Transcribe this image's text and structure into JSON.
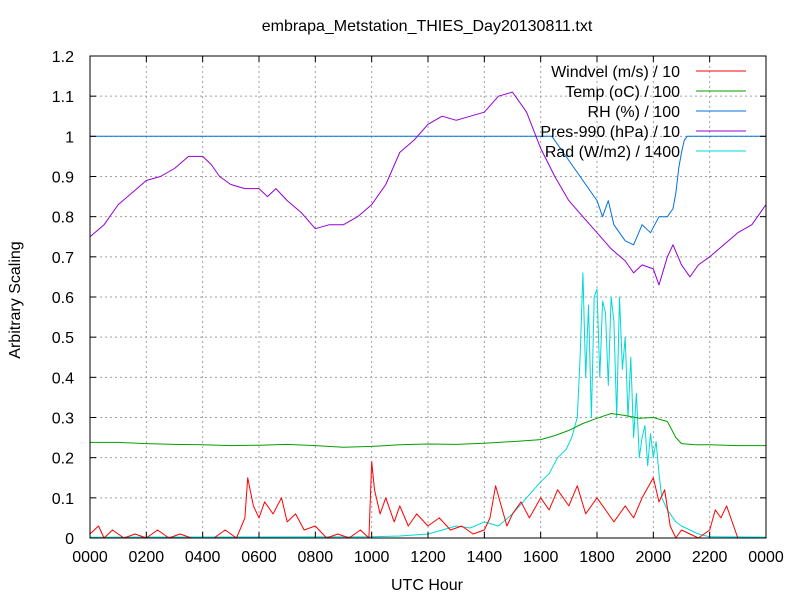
{
  "chart_data": {
    "type": "line",
    "title": "embrapa_Metstation_THIES_Day20130811.txt",
    "xlabel": "UTC Hour",
    "ylabel": "Arbitrary Scaling",
    "xlim": [
      0,
      24
    ],
    "ylim": [
      0,
      1.2
    ],
    "grid": true,
    "legend_position": "top-right",
    "x_ticks": [
      {
        "v": 0,
        "label": "0000"
      },
      {
        "v": 2,
        "label": "0200"
      },
      {
        "v": 4,
        "label": "0400"
      },
      {
        "v": 6,
        "label": "0600"
      },
      {
        "v": 8,
        "label": "0800"
      },
      {
        "v": 10,
        "label": "1000"
      },
      {
        "v": 12,
        "label": "1200"
      },
      {
        "v": 14,
        "label": "1400"
      },
      {
        "v": 16,
        "label": "1600"
      },
      {
        "v": 18,
        "label": "1800"
      },
      {
        "v": 20,
        "label": "2000"
      },
      {
        "v": 22,
        "label": "2200"
      },
      {
        "v": 24,
        "label": "0000"
      }
    ],
    "y_ticks": [
      {
        "v": 0,
        "label": "0"
      },
      {
        "v": 0.1,
        "label": "0.1"
      },
      {
        "v": 0.2,
        "label": "0.2"
      },
      {
        "v": 0.3,
        "label": "0.3"
      },
      {
        "v": 0.4,
        "label": "0.4"
      },
      {
        "v": 0.5,
        "label": "0.5"
      },
      {
        "v": 0.6,
        "label": "0.6"
      },
      {
        "v": 0.7,
        "label": "0.7"
      },
      {
        "v": 0.8,
        "label": "0.8"
      },
      {
        "v": 0.9,
        "label": "0.9"
      },
      {
        "v": 1.0,
        "label": "1"
      },
      {
        "v": 1.1,
        "label": "1.1"
      },
      {
        "v": 1.2,
        "label": "1.2"
      }
    ],
    "series": [
      {
        "name": "Windvel (m/s) / 10",
        "color": "#ff0000",
        "x": [
          0,
          0.3,
          0.5,
          0.8,
          1.2,
          1.6,
          2.0,
          2.4,
          2.8,
          3.2,
          3.6,
          4.0,
          4.4,
          4.8,
          5.2,
          5.5,
          5.6,
          5.8,
          6.0,
          6.2,
          6.5,
          6.8,
          7.0,
          7.3,
          7.6,
          8.0,
          8.4,
          8.8,
          9.2,
          9.6,
          9.9,
          10.0,
          10.1,
          10.3,
          10.5,
          10.8,
          11.0,
          11.3,
          11.6,
          12.0,
          12.4,
          12.8,
          13.2,
          13.6,
          14.0,
          14.2,
          14.4,
          14.6,
          14.8,
          15.0,
          15.3,
          15.6,
          16.0,
          16.3,
          16.6,
          17.0,
          17.3,
          17.6,
          18.0,
          18.3,
          18.6,
          19.0,
          19.3,
          19.6,
          20.0,
          20.2,
          20.4,
          20.6,
          20.8,
          21.0,
          21.3,
          21.6,
          22.0,
          22.2,
          22.4,
          22.6,
          22.8,
          23.0,
          23.5,
          24.0
        ],
        "y": [
          0.01,
          0.03,
          0.0,
          0.02,
          0.0,
          0.01,
          0.0,
          0.02,
          0.0,
          0.01,
          0.0,
          0.0,
          0.0,
          0.02,
          0.0,
          0.05,
          0.15,
          0.08,
          0.05,
          0.09,
          0.06,
          0.1,
          0.04,
          0.06,
          0.02,
          0.03,
          0.0,
          0.01,
          0.0,
          0.02,
          0.0,
          0.19,
          0.12,
          0.06,
          0.1,
          0.04,
          0.08,
          0.03,
          0.06,
          0.03,
          0.05,
          0.02,
          0.03,
          0.01,
          0.02,
          0.05,
          0.13,
          0.08,
          0.03,
          0.06,
          0.09,
          0.05,
          0.1,
          0.07,
          0.12,
          0.08,
          0.13,
          0.06,
          0.1,
          0.07,
          0.04,
          0.08,
          0.05,
          0.1,
          0.15,
          0.09,
          0.12,
          0.03,
          0.0,
          0.02,
          0.01,
          0.0,
          0.02,
          0.07,
          0.05,
          0.08,
          0.04,
          0.0,
          0.0,
          0.0
        ]
      },
      {
        "name": "Temp (oC) / 100",
        "color": "#00a000",
        "x": [
          0,
          1,
          2,
          3,
          4,
          5,
          6,
          7,
          8,
          9,
          10,
          11,
          12,
          13,
          14,
          15,
          16,
          16.5,
          17,
          17.5,
          18,
          18.5,
          19,
          19.5,
          20,
          20.5,
          20.8,
          21,
          21.5,
          22,
          23,
          24
        ],
        "y": [
          0.238,
          0.238,
          0.235,
          0.233,
          0.232,
          0.23,
          0.231,
          0.233,
          0.23,
          0.226,
          0.228,
          0.232,
          0.234,
          0.233,
          0.236,
          0.24,
          0.245,
          0.255,
          0.268,
          0.285,
          0.298,
          0.31,
          0.305,
          0.298,
          0.3,
          0.29,
          0.25,
          0.235,
          0.232,
          0.232,
          0.23,
          0.23
        ]
      },
      {
        "name": "RH (%) / 100",
        "color": "#0070e0",
        "x": [
          0,
          16.4,
          16.8,
          17.2,
          17.6,
          18.0,
          18.2,
          18.4,
          18.6,
          18.8,
          19.0,
          19.3,
          19.6,
          19.9,
          20.2,
          20.5,
          20.7,
          20.8,
          20.9,
          21.0,
          21.1,
          21.2,
          24
        ],
        "y": [
          1.0,
          1.0,
          0.96,
          0.92,
          0.88,
          0.84,
          0.8,
          0.84,
          0.78,
          0.76,
          0.74,
          0.73,
          0.78,
          0.76,
          0.8,
          0.8,
          0.82,
          0.86,
          0.92,
          0.96,
          0.99,
          1.0,
          1.0
        ]
      },
      {
        "name": "Pres-990 (hPa) / 10",
        "color": "#9400d3",
        "x": [
          0,
          0.5,
          1,
          1.5,
          2,
          2.5,
          3,
          3.5,
          4,
          4.3,
          4.6,
          5,
          5.5,
          6,
          6.3,
          6.6,
          7,
          7.5,
          8,
          8.5,
          9,
          9.5,
          10,
          10.5,
          11,
          11.5,
          12,
          12.5,
          13,
          13.5,
          14,
          14.5,
          15,
          15.5,
          16,
          16.5,
          17,
          17.5,
          18,
          18.5,
          19,
          19.3,
          19.6,
          20,
          20.2,
          20.5,
          20.7,
          21,
          21.3,
          21.6,
          22,
          22.5,
          23,
          23.5,
          24
        ],
        "y": [
          0.75,
          0.78,
          0.83,
          0.86,
          0.89,
          0.9,
          0.92,
          0.95,
          0.95,
          0.93,
          0.9,
          0.88,
          0.87,
          0.87,
          0.85,
          0.87,
          0.84,
          0.81,
          0.77,
          0.78,
          0.78,
          0.8,
          0.83,
          0.88,
          0.96,
          0.99,
          1.03,
          1.05,
          1.04,
          1.05,
          1.06,
          1.1,
          1.11,
          1.06,
          0.97,
          0.9,
          0.84,
          0.8,
          0.76,
          0.72,
          0.69,
          0.66,
          0.68,
          0.67,
          0.63,
          0.7,
          0.73,
          0.68,
          0.65,
          0.68,
          0.7,
          0.73,
          0.76,
          0.78,
          0.83
        ]
      },
      {
        "name": "Rad (W/m2) / 1400",
        "color": "#00d8d8",
        "x": [
          0,
          10,
          11,
          12,
          12.5,
          13,
          13.5,
          14,
          14.5,
          15,
          15.5,
          16,
          16.3,
          16.6,
          16.9,
          17.1,
          17.3,
          17.4,
          17.5,
          17.6,
          17.7,
          17.8,
          17.9,
          18.0,
          18.1,
          18.2,
          18.3,
          18.4,
          18.5,
          18.6,
          18.7,
          18.8,
          18.9,
          19.0,
          19.1,
          19.2,
          19.3,
          19.4,
          19.5,
          19.6,
          19.7,
          19.8,
          19.9,
          20.0,
          20.1,
          20.2,
          20.3,
          20.5,
          20.8,
          21.0,
          21.3,
          21.6,
          22.0,
          24
        ],
        "y": [
          0.002,
          0.003,
          0.005,
          0.01,
          0.02,
          0.03,
          0.025,
          0.04,
          0.03,
          0.06,
          0.1,
          0.14,
          0.16,
          0.2,
          0.22,
          0.25,
          0.3,
          0.45,
          0.66,
          0.4,
          0.58,
          0.3,
          0.6,
          0.62,
          0.4,
          0.59,
          0.56,
          0.38,
          0.6,
          0.54,
          0.3,
          0.6,
          0.42,
          0.5,
          0.3,
          0.45,
          0.25,
          0.36,
          0.2,
          0.25,
          0.28,
          0.18,
          0.26,
          0.2,
          0.24,
          0.16,
          0.1,
          0.07,
          0.04,
          0.03,
          0.02,
          0.01,
          0.003,
          0.002
        ]
      }
    ]
  }
}
